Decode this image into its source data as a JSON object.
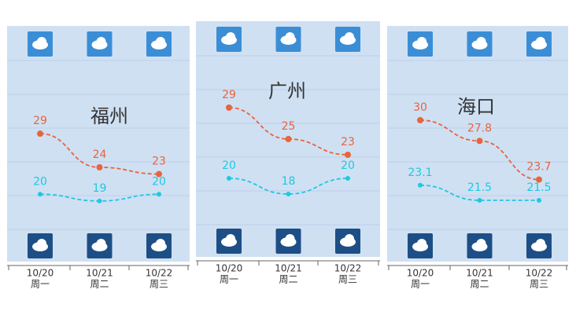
{
  "chart_data": [
    {
      "type": "line",
      "title": "福州",
      "categories": [
        "10/20",
        "10/21",
        "10/22"
      ],
      "weekdays": [
        "周一",
        "周二",
        "周三"
      ],
      "series": [
        {
          "color": "#e8643c",
          "values": [
            29,
            24,
            23
          ]
        },
        {
          "color": "#1ec8e0",
          "values": [
            20,
            19,
            20
          ]
        }
      ],
      "ylim": [
        10,
        45
      ]
    },
    {
      "type": "line",
      "title": "广州",
      "categories": [
        "10/20",
        "10/21",
        "10/22"
      ],
      "weekdays": [
        "周一",
        "周二",
        "周三"
      ],
      "series": [
        {
          "color": "#e8643c",
          "values": [
            29,
            25,
            23
          ]
        },
        {
          "color": "#1ec8e0",
          "values": [
            20,
            18,
            20
          ]
        }
      ],
      "ylim": [
        10,
        40
      ]
    },
    {
      "type": "line",
      "title": "海口",
      "categories": [
        "10/20",
        "10/21",
        "10/22"
      ],
      "weekdays": [
        "周一",
        "周二",
        "周三"
      ],
      "series": [
        {
          "color": "#e8643c",
          "values": [
            30,
            27.8,
            23.7
          ]
        },
        {
          "color": "#1ec8e0",
          "values": [
            23.1,
            21.5,
            21.5
          ]
        }
      ],
      "ylim": [
        15,
        40
      ]
    }
  ]
}
